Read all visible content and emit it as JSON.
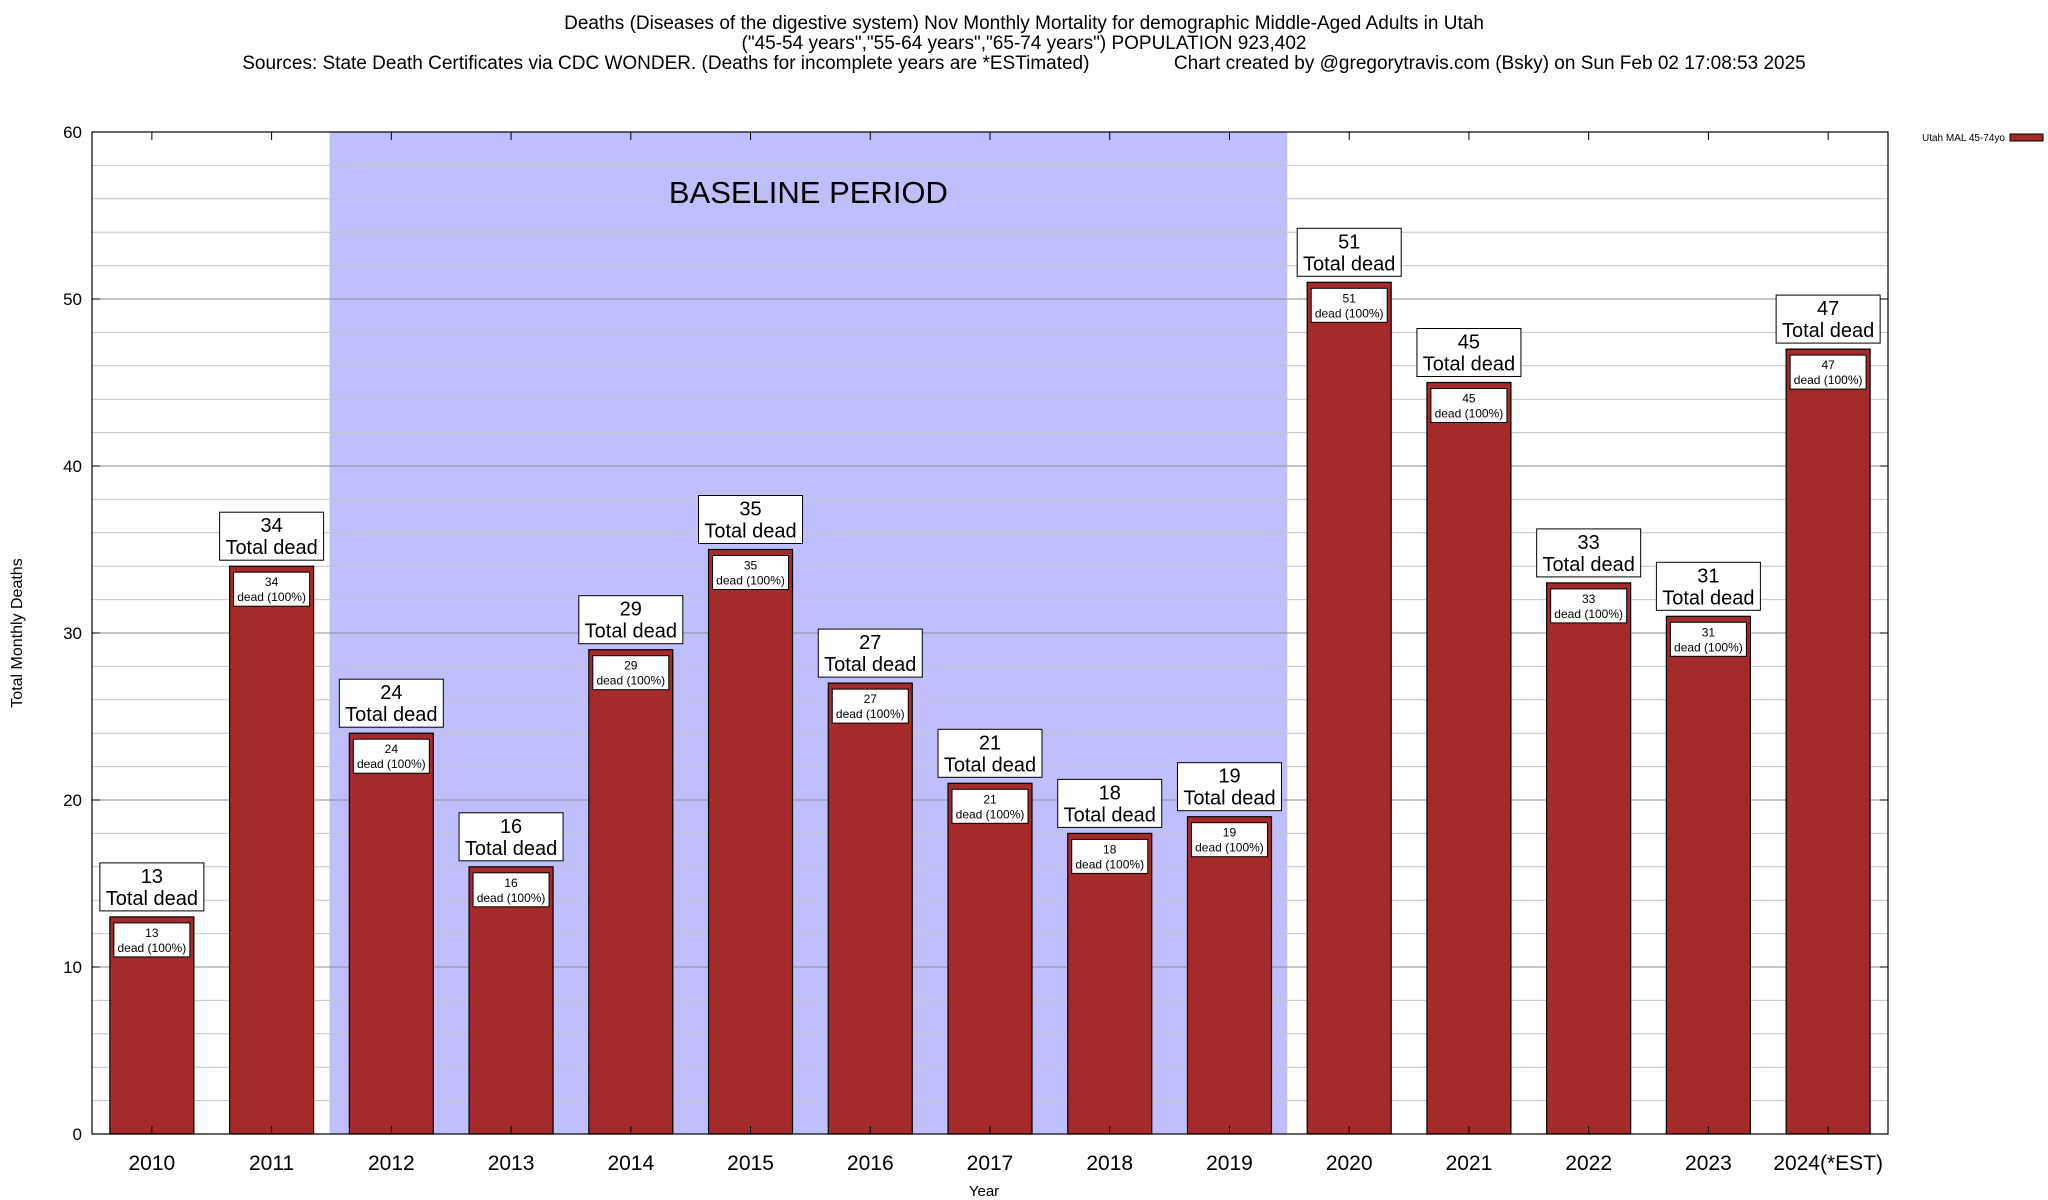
{
  "header": {
    "title_line1": "Deaths (Diseases of the digestive system) Nov Monthly Mortality for demographic Middle-Aged Adults in Utah",
    "title_line2": "(\"45-54 years\",\"55-64 years\",\"65-74 years\") POPULATION 923,402",
    "title_line3": "Sources: State Death Certificates via CDC WONDER. (Deaths for incomplete years are *ESTimated)                Chart created by @gregorytravis.com (Bsky) on Sun Feb 02 17:08:53 2025"
  },
  "chart_data": {
    "type": "bar",
    "xlabel": "Year",
    "ylabel": "Total Monthly Deaths",
    "ylim": [
      0,
      60
    ],
    "yticks": [
      0,
      10,
      20,
      30,
      40,
      50,
      60
    ],
    "grid": true,
    "categories": [
      "2010",
      "2011",
      "2012",
      "2013",
      "2014",
      "2015",
      "2016",
      "2017",
      "2018",
      "2019",
      "2020",
      "2021",
      "2022",
      "2023",
      "2024(*EST)"
    ],
    "series": [
      {
        "name": "Utah MAL 45-74yo",
        "color": "#a52a2a",
        "values": [
          13,
          34,
          24,
          16,
          29,
          35,
          27,
          21,
          18,
          19,
          51,
          45,
          33,
          31,
          47
        ]
      }
    ],
    "top_label_suffix": "Total dead",
    "inner_label_suffix": "dead (100%)",
    "legend": {
      "label": "Utah MAL 45-74yo",
      "placement": "top-right"
    },
    "baseline": {
      "label": "BASELINE PERIOD",
      "from": "2012",
      "to": "2019",
      "color": "#bfbfff"
    }
  }
}
